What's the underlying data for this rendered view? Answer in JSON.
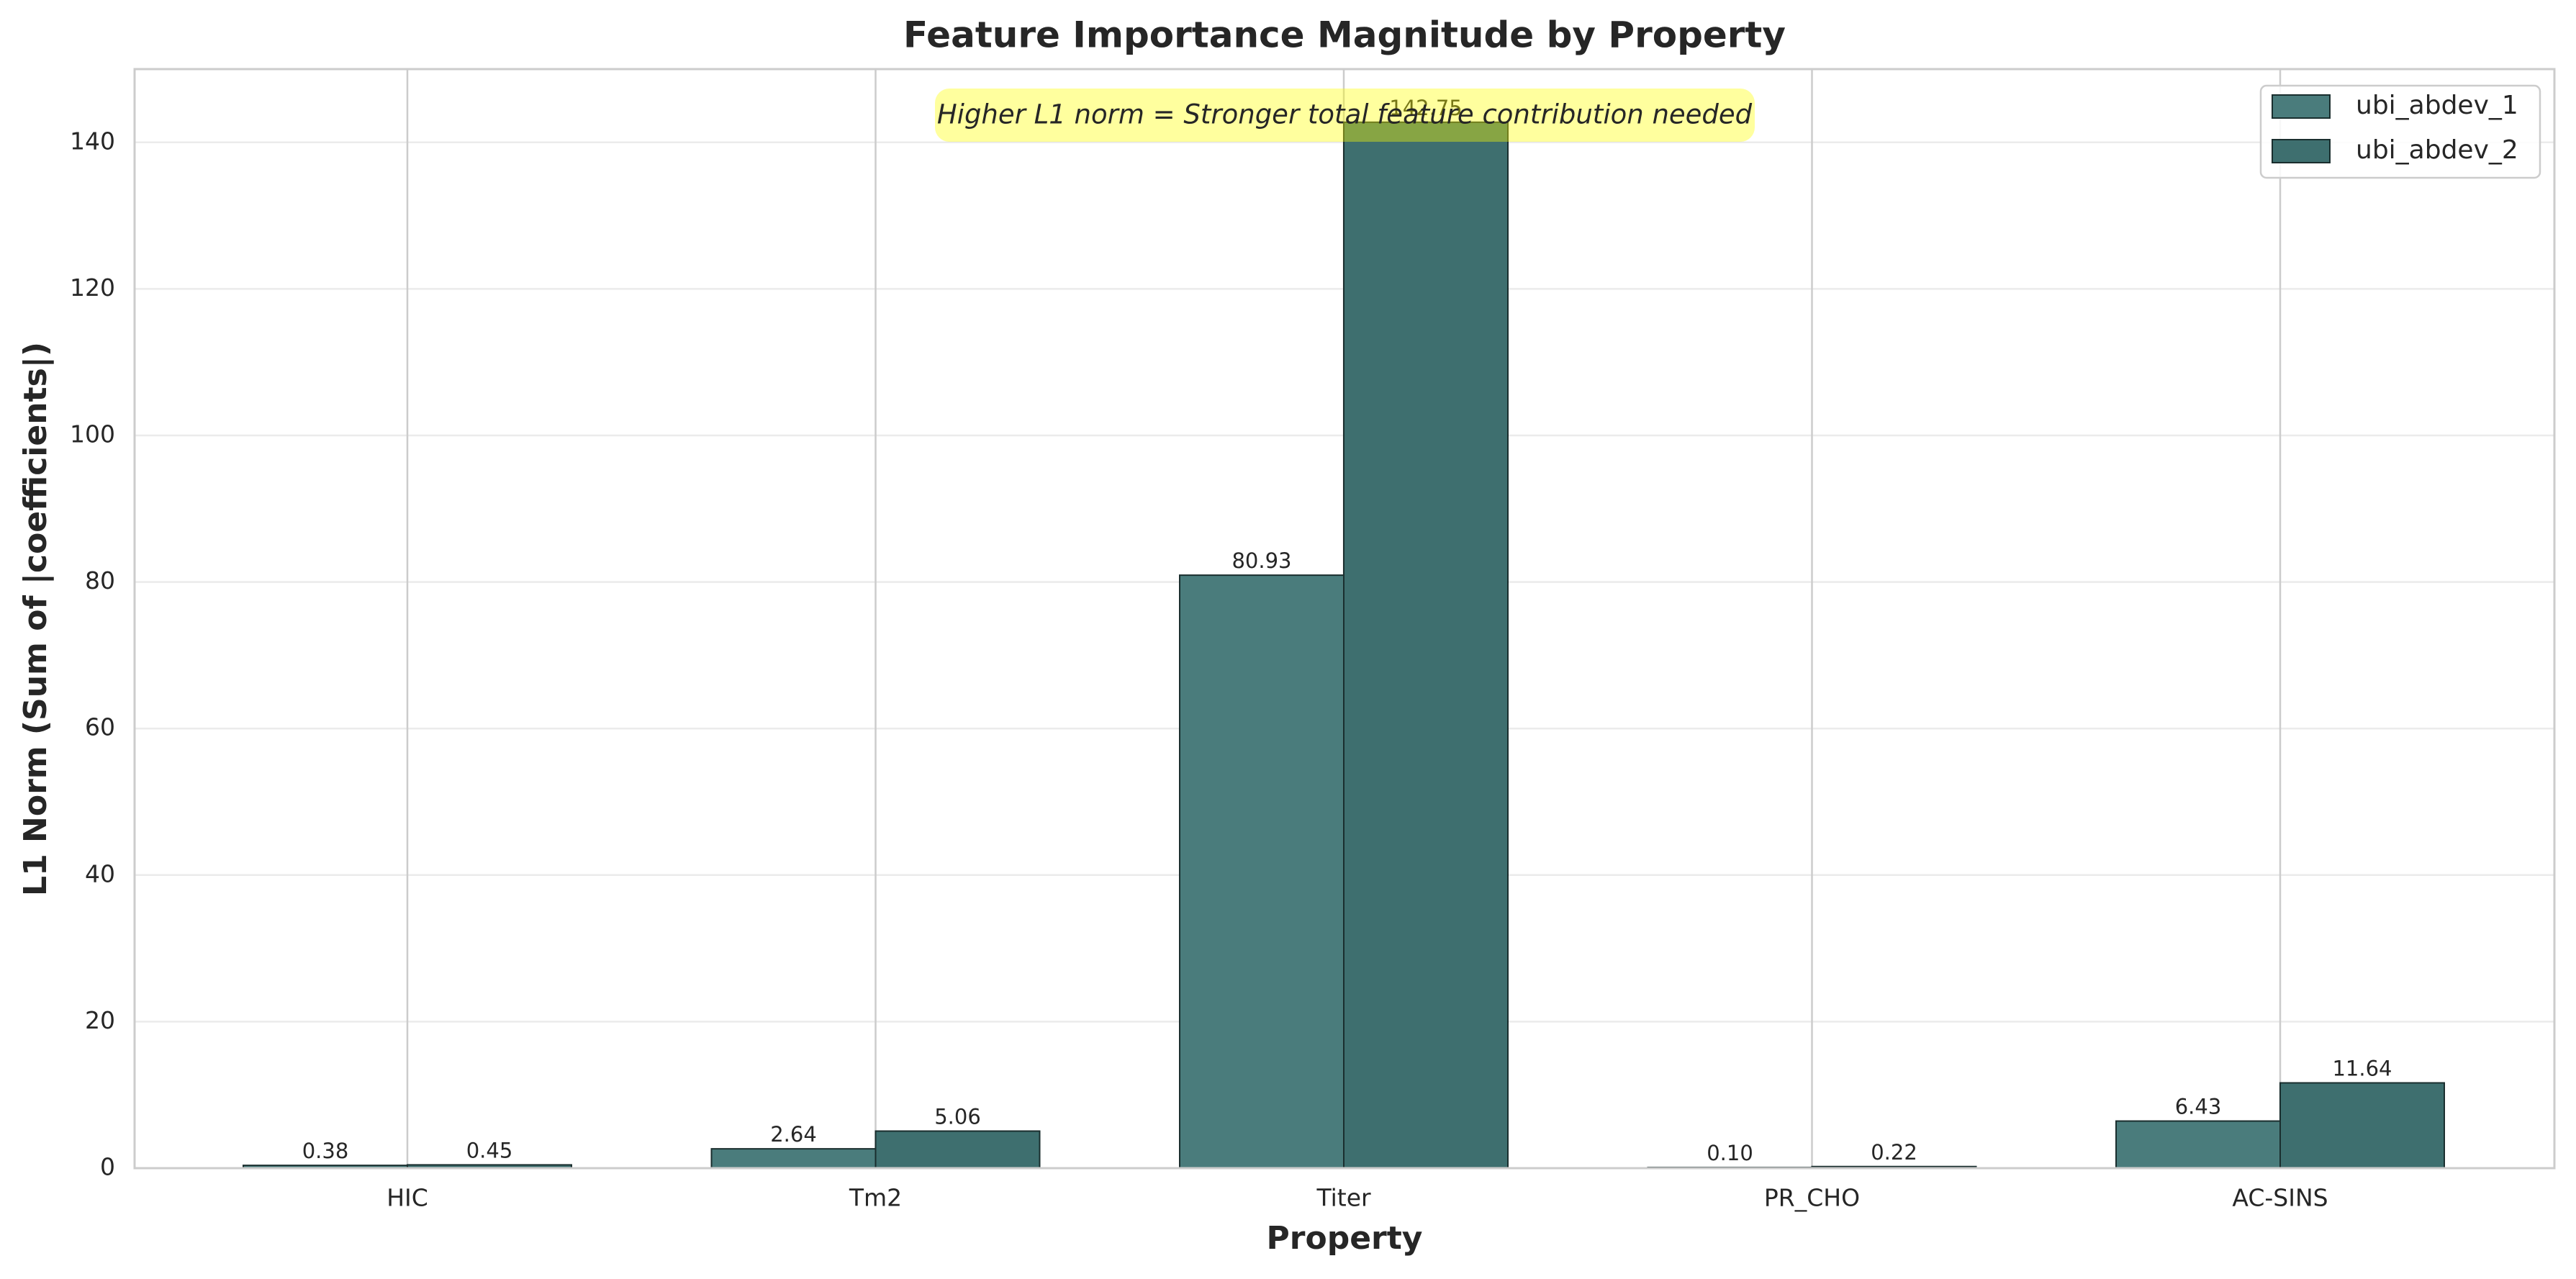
{
  "chart_data": {
    "type": "bar",
    "title": "Feature Importance Magnitude by Property",
    "xlabel": "Property",
    "ylabel": "L1 Norm (Sum of |coefficients|)",
    "annotation": "Higher L1 norm = Stronger total feature contribution needed",
    "categories": [
      "HIC",
      "Tm2",
      "Titer",
      "PR_CHO",
      "AC-SINS"
    ],
    "series": [
      {
        "name": "ubi_abdev_1",
        "color": "#4a7c7c",
        "values": [
          0.38,
          2.64,
          80.93,
          0.1,
          6.43
        ],
        "value_labels": [
          "0.38",
          "2.64",
          "80.93",
          "0.10",
          "6.43"
        ]
      },
      {
        "name": "ubi_abdev_2",
        "color": "#3e6f6f",
        "values": [
          0.45,
          5.06,
          142.75,
          0.22,
          11.64
        ],
        "value_labels": [
          "0.45",
          "5.06",
          "142.75",
          "0.22",
          "11.64"
        ]
      }
    ],
    "ylim": [
      0,
      150
    ],
    "yticks": [
      0,
      20,
      40,
      60,
      80,
      100,
      120,
      140
    ],
    "grid": true,
    "legend": "upper right"
  }
}
